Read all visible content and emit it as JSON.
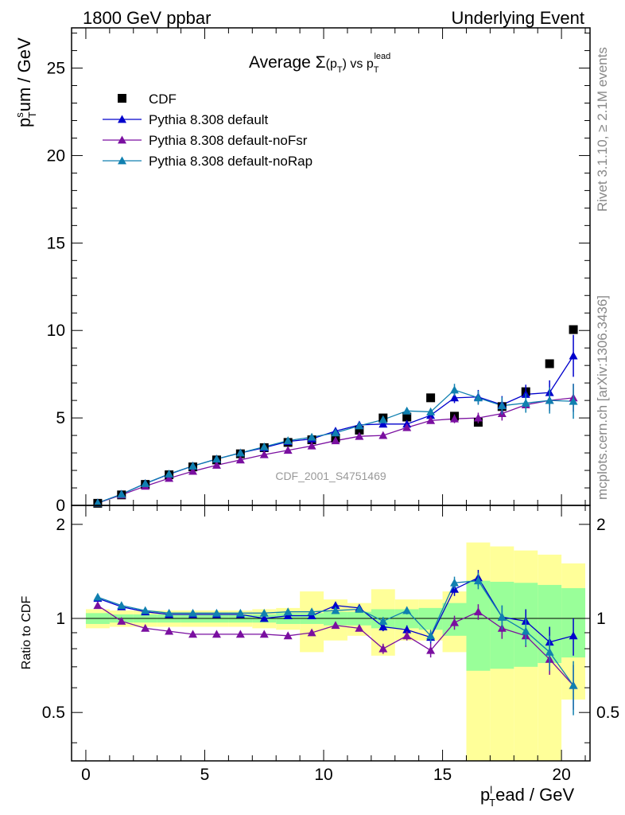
{
  "header": {
    "left": "1800 GeV ppbar",
    "right": "Underlying Event"
  },
  "side_text": {
    "rivet": "Rivet 3.1.10, ≥ 2.1M events",
    "mcplots": "mcplots.cern.ch [arXiv:1306.3436]"
  },
  "chart_data": {
    "type": "scatter",
    "title": "Average Σ(p_T) vs p_T^lead",
    "analysis_tag": "CDF_2001_S4751469",
    "xlabel": "p_T^lead / GeV",
    "ylabel": "p_T^sum / GeV",
    "ratio_ylabel": "Ratio to CDF",
    "xlim": [
      -0.6,
      21.2
    ],
    "ylim": [
      0,
      27.3
    ],
    "ratio_ylim": [
      0.35,
      2.3
    ],
    "x_ticks": [
      "0",
      "5",
      "10",
      "15",
      "20"
    ],
    "y_ticks": [
      "0",
      "5",
      "10",
      "15",
      "20",
      "25"
    ],
    "ratio_ticks": [
      "0.5",
      "1",
      "2"
    ],
    "legend_position": "top-left",
    "x": [
      0.5,
      1.5,
      2.5,
      3.5,
      4.5,
      5.5,
      6.5,
      7.5,
      8.5,
      9.5,
      10.5,
      11.5,
      12.5,
      13.5,
      14.5,
      15.5,
      16.5,
      17.5,
      18.5,
      19.5,
      20.5
    ],
    "series": [
      {
        "name": "CDF",
        "color": "#000000",
        "marker": "square",
        "values": [
          0.12,
          0.6,
          1.2,
          1.75,
          2.2,
          2.6,
          2.95,
          3.3,
          3.6,
          3.75,
          3.85,
          4.3,
          5.0,
          5.05,
          6.15,
          5.1,
          4.75,
          5.65,
          6.5,
          8.1,
          10.05
        ]
      },
      {
        "name": "Pythia 8.308 default",
        "color": "#0000cc",
        "marker": "triangle",
        "values": [
          0.14,
          0.64,
          1.25,
          1.78,
          2.25,
          2.65,
          3.0,
          3.3,
          3.65,
          3.8,
          4.25,
          4.6,
          4.65,
          4.65,
          5.15,
          6.15,
          6.2,
          5.75,
          6.35,
          6.45,
          8.55
        ],
        "errors": [
          0.01,
          0.01,
          0.02,
          0.02,
          0.03,
          0.03,
          0.04,
          0.05,
          0.06,
          0.07,
          0.09,
          0.1,
          0.12,
          0.15,
          0.2,
          0.3,
          0.4,
          0.5,
          0.55,
          0.7,
          1.2
        ]
      },
      {
        "name": "Pythia 8.308 default-noFsr",
        "color": "#7a0fa0",
        "marker": "triangle",
        "values": [
          0.13,
          0.6,
          1.1,
          1.55,
          1.95,
          2.3,
          2.6,
          2.9,
          3.15,
          3.4,
          3.7,
          3.95,
          4.0,
          4.45,
          4.85,
          4.95,
          5.0,
          5.25,
          5.75,
          6.0,
          6.15
        ],
        "errors": [
          0.01,
          0.01,
          0.02,
          0.02,
          0.03,
          0.03,
          0.04,
          0.05,
          0.06,
          0.07,
          0.08,
          0.1,
          0.12,
          0.14,
          0.18,
          0.25,
          0.3,
          0.4,
          0.45,
          0.6,
          0.8
        ]
      },
      {
        "name": "Pythia 8.308 default-noRap",
        "color": "#1080b0",
        "marker": "triangle",
        "values": [
          0.14,
          0.64,
          1.25,
          1.8,
          2.25,
          2.65,
          3.0,
          3.35,
          3.7,
          3.9,
          4.15,
          4.55,
          4.9,
          5.4,
          5.35,
          6.6,
          6.15,
          5.7,
          5.85,
          6.0,
          5.95
        ],
        "errors": [
          0.01,
          0.01,
          0.02,
          0.02,
          0.03,
          0.03,
          0.04,
          0.05,
          0.06,
          0.07,
          0.09,
          0.1,
          0.12,
          0.15,
          0.2,
          0.35,
          0.4,
          0.5,
          0.55,
          0.75,
          1.0
        ]
      }
    ],
    "ratio_series": [
      {
        "name": "Pythia 8.308 default",
        "color": "#0000cc",
        "values": [
          1.16,
          1.09,
          1.05,
          1.03,
          1.03,
          1.03,
          1.03,
          1.0,
          1.02,
          1.02,
          1.1,
          1.08,
          0.94,
          0.92,
          0.87,
          1.24,
          1.35,
          1.01,
          0.98,
          0.84,
          0.88
        ],
        "errors": [
          0.01,
          0.01,
          0.01,
          0.01,
          0.01,
          0.01,
          0.01,
          0.01,
          0.02,
          0.02,
          0.02,
          0.02,
          0.03,
          0.03,
          0.04,
          0.06,
          0.08,
          0.09,
          0.09,
          0.1,
          0.12
        ]
      },
      {
        "name": "Pythia 8.308 default-noFsr",
        "color": "#7a0fa0",
        "values": [
          1.1,
          0.98,
          0.93,
          0.91,
          0.89,
          0.89,
          0.89,
          0.89,
          0.88,
          0.9,
          0.95,
          0.93,
          0.8,
          0.88,
          0.79,
          0.97,
          1.05,
          0.93,
          0.88,
          0.74,
          0.61
        ],
        "errors": [
          0.01,
          0.01,
          0.01,
          0.01,
          0.01,
          0.01,
          0.01,
          0.01,
          0.02,
          0.02,
          0.02,
          0.02,
          0.03,
          0.03,
          0.04,
          0.05,
          0.06,
          0.07,
          0.07,
          0.08,
          0.1
        ]
      },
      {
        "name": "Pythia 8.308 default-noRap",
        "color": "#1080b0",
        "values": [
          1.17,
          1.1,
          1.06,
          1.04,
          1.04,
          1.04,
          1.04,
          1.04,
          1.05,
          1.05,
          1.06,
          1.07,
          0.98,
          1.06,
          0.88,
          1.3,
          1.32,
          1.01,
          0.91,
          0.78,
          0.61
        ],
        "errors": [
          0.01,
          0.01,
          0.01,
          0.01,
          0.01,
          0.01,
          0.01,
          0.01,
          0.02,
          0.02,
          0.02,
          0.02,
          0.03,
          0.03,
          0.04,
          0.06,
          0.08,
          0.09,
          0.09,
          0.1,
          0.12
        ]
      }
    ],
    "band_bins": [
      {
        "x0": 0,
        "x1": 1,
        "inner": [
          0.96,
          1.04
        ],
        "outer": [
          0.93,
          1.07
        ]
      },
      {
        "x0": 1,
        "x1": 2,
        "inner": [
          0.97,
          1.03
        ],
        "outer": [
          0.94,
          1.06
        ]
      },
      {
        "x0": 2,
        "x1": 3,
        "inner": [
          0.97,
          1.03
        ],
        "outer": [
          0.94,
          1.06
        ]
      },
      {
        "x0": 3,
        "x1": 4,
        "inner": [
          0.97,
          1.03
        ],
        "outer": [
          0.94,
          1.06
        ]
      },
      {
        "x0": 4,
        "x1": 5,
        "inner": [
          0.97,
          1.03
        ],
        "outer": [
          0.94,
          1.06
        ]
      },
      {
        "x0": 5,
        "x1": 6,
        "inner": [
          0.97,
          1.03
        ],
        "outer": [
          0.94,
          1.06
        ]
      },
      {
        "x0": 6,
        "x1": 7,
        "inner": [
          0.97,
          1.03
        ],
        "outer": [
          0.94,
          1.06
        ]
      },
      {
        "x0": 7,
        "x1": 8,
        "inner": [
          0.97,
          1.03
        ],
        "outer": [
          0.93,
          1.07
        ]
      },
      {
        "x0": 8,
        "x1": 9,
        "inner": [
          0.96,
          1.04
        ],
        "outer": [
          0.92,
          1.08
        ]
      },
      {
        "x0": 9,
        "x1": 10,
        "inner": [
          0.96,
          1.04
        ],
        "outer": [
          0.78,
          1.22
        ]
      },
      {
        "x0": 10,
        "x1": 11,
        "inner": [
          0.95,
          1.05
        ],
        "outer": [
          0.85,
          1.15
        ]
      },
      {
        "x0": 11,
        "x1": 12,
        "inner": [
          0.95,
          1.05
        ],
        "outer": [
          0.88,
          1.12
        ]
      },
      {
        "x0": 12,
        "x1": 13,
        "inner": [
          0.93,
          1.07
        ],
        "outer": [
          0.76,
          1.24
        ]
      },
      {
        "x0": 13,
        "x1": 14,
        "inner": [
          0.93,
          1.07
        ],
        "outer": [
          0.85,
          1.15
        ]
      },
      {
        "x0": 14,
        "x1": 15,
        "inner": [
          0.92,
          1.08
        ],
        "outer": [
          0.85,
          1.15
        ]
      },
      {
        "x0": 15,
        "x1": 16,
        "inner": [
          0.88,
          1.12
        ],
        "outer": [
          0.78,
          1.22
        ]
      },
      {
        "x0": 16,
        "x1": 17,
        "inner": [
          0.68,
          1.32
        ],
        "outer": [
          0.0,
          1.75
        ]
      },
      {
        "x0": 17,
        "x1": 18,
        "inner": [
          0.69,
          1.31
        ],
        "outer": [
          0.0,
          1.7
        ]
      },
      {
        "x0": 18,
        "x1": 19,
        "inner": [
          0.7,
          1.3
        ],
        "outer": [
          0.0,
          1.65
        ]
      },
      {
        "x0": 19,
        "x1": 20,
        "inner": [
          0.72,
          1.28
        ],
        "outer": [
          0.0,
          1.6
        ]
      },
      {
        "x0": 20,
        "x1": 21,
        "inner": [
          0.75,
          1.25
        ],
        "outer": [
          0.55,
          1.5
        ]
      }
    ],
    "band_colors": {
      "inner": "#99ff99",
      "outer": "#ffff99"
    }
  }
}
